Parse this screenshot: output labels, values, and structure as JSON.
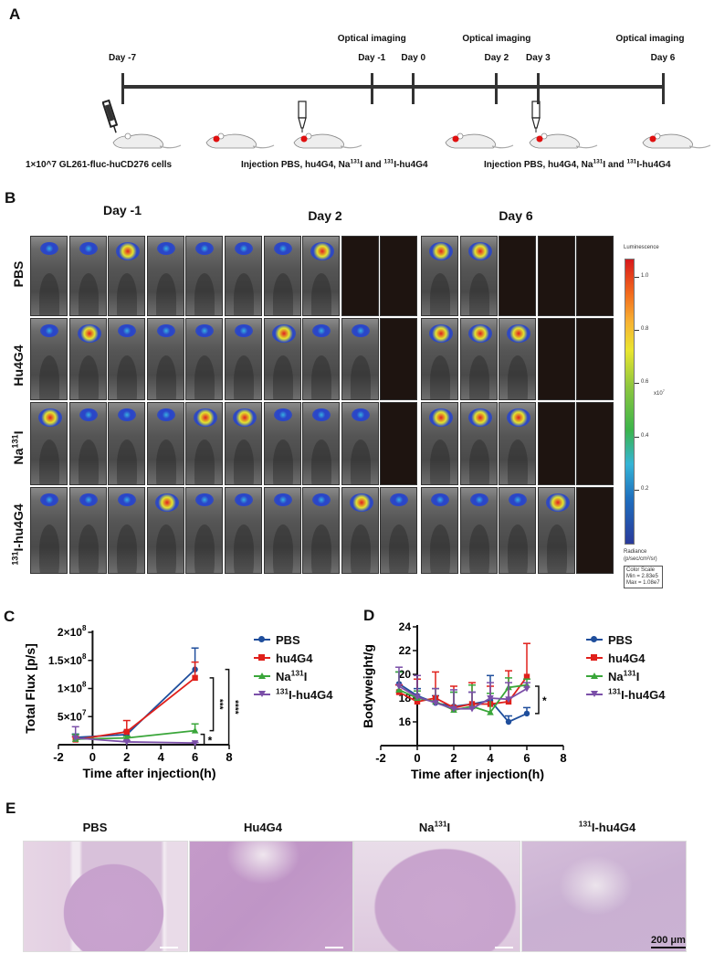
{
  "panel_labels": {
    "a": "A",
    "b": "B",
    "c": "C",
    "d": "D",
    "e": "E"
  },
  "panel_a": {
    "timeline_days": [
      {
        "label": "Day -7",
        "day": -7
      },
      {
        "label": "Day -1",
        "day": -1
      },
      {
        "label": "Day 0",
        "day": 0
      },
      {
        "label": "Day 2",
        "day": 2
      },
      {
        "label": "Day 3",
        "day": 3
      },
      {
        "label": "Day 6",
        "day": 6
      }
    ],
    "optical_imaging_label": "Optical imaging",
    "optical_imaging_days": [
      -1,
      2,
      6
    ],
    "caption_cells": "1×10^7 GL261-fluc-huCD276 cells",
    "caption_injection_prefix": "Injection PBS, hu4G4, Na",
    "caption_injection_sup1": "131",
    "caption_injection_mid": "I and ",
    "caption_injection_sup2": "131",
    "caption_injection_suffix": "I-hu4G4",
    "icons": [
      "syringe-icon",
      "mouse-icon",
      "dropper-icon",
      "tumor-marker-icon"
    ]
  },
  "panel_b": {
    "day_headers": [
      "Day -1",
      "Day 2",
      "Day 6"
    ],
    "rows": [
      {
        "label": "PBS",
        "label_sup": "",
        "label_main": "PBS",
        "mice": {
          "day_m1": 5,
          "day_2": 3,
          "day_6": 2
        }
      },
      {
        "label": "Hu4G4",
        "label_sup": "",
        "label_main": "Hu4G4",
        "mice": {
          "day_m1": 5,
          "day_2": 4,
          "day_6": 3
        }
      },
      {
        "label": "Na131I",
        "label_sup": "131",
        "label_pre": "Na",
        "label_main": "I",
        "mice": {
          "day_m1": 5,
          "day_2": 4,
          "day_6": 3
        }
      },
      {
        "label": "131I-hu4G4",
        "label_sup": "131",
        "label_pre": "",
        "label_main": "I-hu4G4",
        "mice": {
          "day_m1": 5,
          "day_2": 5,
          "day_6": 4
        }
      }
    ],
    "colorbar": {
      "title": "Luminescence",
      "ticks": [
        "1.0",
        "0.8",
        "0.6",
        "0.4",
        "0.2"
      ],
      "multiplier": "x10",
      "multiplier_exp": "7",
      "unit_line1": "Radiance",
      "unit_line2": "(p/sec/cm²/sr)",
      "scale_title": "Color Scale",
      "scale_min": "Min = 2.83e5",
      "scale_max": "Max = 1.08e7"
    }
  },
  "series_colors": {
    "PBS": "#1f4e9c",
    "hu4G4": "#e0201b",
    "Na131I": "#3aa63a",
    "131I-hu4G4": "#7b4fa8"
  },
  "legend": [
    {
      "key": "PBS",
      "pre": "",
      "sup": "",
      "main": "PBS",
      "marker": "circle"
    },
    {
      "key": "hu4G4",
      "pre": "",
      "sup": "",
      "main": "hu4G4",
      "marker": "square"
    },
    {
      "key": "Na131I",
      "pre": "Na",
      "sup": "131",
      "main": "I",
      "marker": "triangle-up"
    },
    {
      "key": "131I-hu4G4",
      "pre": "",
      "sup": "131",
      "main": "I-hu4G4",
      "marker": "triangle-down"
    }
  ],
  "chart_data": [
    {
      "id": "C",
      "type": "line",
      "title": "",
      "xlabel": "Time after injection(h)",
      "ylabel": "Total Flux [p/s]",
      "xlim": [
        -2,
        8
      ],
      "ylim": [
        0,
        200000000
      ],
      "xticks": [
        -2,
        0,
        2,
        4,
        6,
        8
      ],
      "yticks": [
        {
          "v": 50000000,
          "label": "5×10",
          "exp": "7"
        },
        {
          "v": 100000000,
          "label": "1×10",
          "exp": "8"
        },
        {
          "v": 150000000,
          "label": "1.5×10",
          "exp": "8"
        },
        {
          "v": 200000000,
          "label": "2×10",
          "exp": "8"
        }
      ],
      "grid": false,
      "legend_position": "right",
      "x": [
        -1,
        2,
        6
      ],
      "series": [
        {
          "name": "PBS",
          "key": "PBS",
          "values": [
            13000000,
            18000000,
            134000000
          ],
          "err": [
            6000000,
            6000000,
            38000000
          ]
        },
        {
          "name": "hu4G4",
          "key": "hu4G4",
          "values": [
            9000000,
            23000000,
            119000000
          ],
          "err": [
            5000000,
            20000000,
            28000000
          ]
        },
        {
          "name": "Na131I",
          "key": "Na131I",
          "values": [
            10000000,
            12000000,
            25000000
          ],
          "err": [
            8000000,
            3000000,
            12000000
          ]
        },
        {
          "name": "131I-hu4G4",
          "key": "131I-hu4G4",
          "values": [
            12000000,
            5000000,
            3000000
          ],
          "err": [
            20000000,
            2000000,
            1000000
          ]
        }
      ],
      "significance": [
        {
          "label": "***",
          "from": "hu4G4",
          "to": "Na131I",
          "orientation": "vertical"
        },
        {
          "label": "****",
          "from": "PBS",
          "to": "131I-hu4G4",
          "orientation": "vertical"
        },
        {
          "label": "*",
          "from": "Na131I",
          "to": "131I-hu4G4",
          "orientation": "horizontal"
        }
      ]
    },
    {
      "id": "D",
      "type": "line",
      "title": "",
      "xlabel": "Time after injection(h)",
      "ylabel": "Bodyweight/g",
      "xlim": [
        -2,
        8
      ],
      "ylim": [
        14,
        24
      ],
      "xticks": [
        -2,
        0,
        2,
        4,
        6,
        8
      ],
      "yticks": [
        {
          "v": 16,
          "label": "16",
          "exp": ""
        },
        {
          "v": 18,
          "label": "18",
          "exp": ""
        },
        {
          "v": 20,
          "label": "20",
          "exp": ""
        },
        {
          "v": 22,
          "label": "22",
          "exp": ""
        },
        {
          "v": 24,
          "label": "24",
          "exp": ""
        }
      ],
      "grid": false,
      "legend_position": "right",
      "x": [
        -1,
        0,
        1,
        2,
        3,
        4,
        5,
        6
      ],
      "series": [
        {
          "name": "PBS",
          "key": "PBS",
          "values": [
            19.2,
            18.2,
            17.6,
            17.3,
            17.5,
            17.8,
            16.0,
            16.7
          ],
          "err": [
            1.0,
            0.6,
            0.6,
            1.2,
            1.0,
            2.1,
            0.5,
            0.5
          ]
        },
        {
          "name": "hu4G4",
          "key": "hu4G4",
          "values": [
            18.5,
            17.7,
            18.0,
            17.2,
            17.5,
            17.5,
            17.7,
            19.8
          ],
          "err": [
            0.6,
            1.9,
            2.2,
            1.8,
            1.8,
            1.5,
            2.6,
            2.8
          ]
        },
        {
          "name": "Na131I",
          "key": "Na131I",
          "values": [
            18.7,
            18.0,
            17.7,
            17.0,
            17.3,
            16.8,
            18.9,
            19.1
          ],
          "err": [
            1.5,
            0.6,
            1.1,
            1.5,
            1.8,
            1.6,
            0.8,
            0.5
          ]
        },
        {
          "name": "131I-hu4G4",
          "key": "131I-hu4G4",
          "values": [
            19.0,
            18.1,
            17.6,
            17.1,
            17.1,
            18.0,
            17.9,
            18.8
          ],
          "err": [
            1.6,
            1.8,
            1.2,
            1.6,
            1.4,
            1.3,
            1.4,
            0.5
          ]
        }
      ],
      "significance": [
        {
          "label": "*",
          "from": "hu4G4",
          "to": "PBS",
          "orientation": "vertical"
        }
      ]
    }
  ],
  "panel_e": {
    "titles": [
      {
        "pre": "",
        "sup": "",
        "main": "PBS"
      },
      {
        "pre": "",
        "sup": "",
        "main": "Hu4G4"
      },
      {
        "pre": "Na",
        "sup": "131",
        "main": "I"
      },
      {
        "pre": "",
        "sup": "131",
        "main": "I-hu4G4"
      }
    ],
    "scale_bar": "200 μm"
  }
}
